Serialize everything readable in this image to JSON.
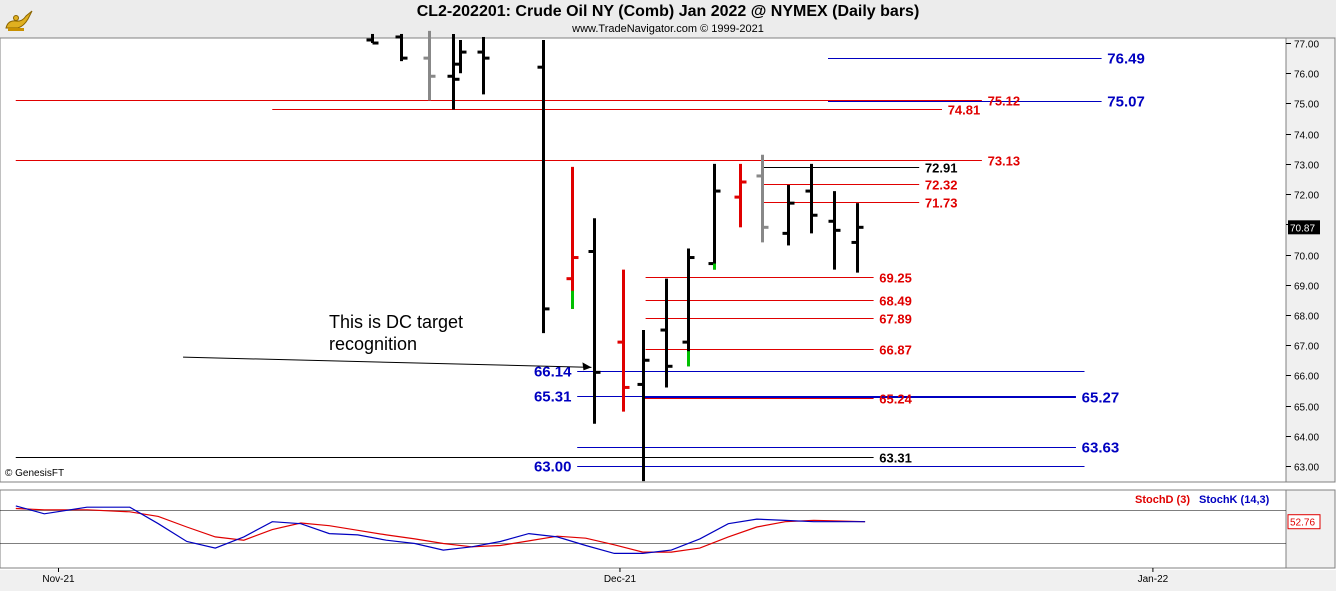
{
  "header": {
    "title": "CL2-202201:  Crude Oil NY (Comb) Jan 2022 @ NYMEX  (Daily bars)",
    "subtitle": "www.TradeNavigator.com © 1999-2021",
    "logo_icon": "genie-lamp-icon"
  },
  "watermark": "© GenesisFT",
  "annotation": {
    "lines": [
      "This is DC target",
      "recognition"
    ],
    "arrow_from": [
      4.3,
      67.0
    ],
    "arrow_to": [
      18.7,
      66.2
    ]
  },
  "price_badge": "70.87",
  "stoch_badge": "52.76",
  "stoch_legend": [
    {
      "label": "StochD (3)",
      "color": "#e00000"
    },
    {
      "label": "StochK (14,3)",
      "color": "#0000c0"
    }
  ],
  "colors": {
    "up": "#000000",
    "red": "#e00000",
    "blue": "#0000c0",
    "gray": "#888888",
    "green": "#00c000"
  },
  "chart_data": {
    "type": "ohlc",
    "x_labels": [
      {
        "x": 0,
        "label": "Nov-21"
      },
      {
        "x": 19.7,
        "label": "Dec-21"
      },
      {
        "x": 38.4,
        "label": "Jan-22"
      }
    ],
    "ylim": [
      62.55,
      77.1
    ],
    "y_ticks": [
      63.0,
      64.0,
      65.0,
      66.0,
      67.0,
      68.0,
      69.0,
      70.0,
      71.0,
      72.0,
      73.0,
      74.0,
      75.0,
      76.0,
      77.0
    ],
    "bars": [
      {
        "x": 11.0,
        "h": 77.3,
        "l": 77.0,
        "o": 77.1,
        "c": 77.0,
        "color": "#000000"
      },
      {
        "x": 12.0,
        "h": 77.3,
        "l": 76.4,
        "o": 77.2,
        "c": 76.5,
        "color": "#000000"
      },
      {
        "x": 13.0,
        "h": 77.4,
        "l": 75.1,
        "o": 76.5,
        "c": 75.9,
        "color": "#888888"
      },
      {
        "x": 13.85,
        "h": 77.3,
        "l": 74.8,
        "o": 75.9,
        "c": 75.8,
        "color": "#000000"
      },
      {
        "x": 14.1,
        "h": 77.1,
        "l": 76.0,
        "o": 76.3,
        "c": 76.7,
        "color": "#000000"
      },
      {
        "x": 14.9,
        "h": 77.2,
        "l": 75.3,
        "o": 76.7,
        "c": 76.5,
        "color": "#000000"
      },
      {
        "x": 17.0,
        "h": 77.1,
        "l": 67.4,
        "o": 76.2,
        "c": 68.2,
        "color": "#000000"
      },
      {
        "x": 18.0,
        "h": 72.9,
        "l": 68.2,
        "o": 69.2,
        "c": 69.9,
        "color": "#e00000"
      },
      {
        "x": 18.8,
        "h": 71.2,
        "l": 64.4,
        "o": 70.1,
        "c": 66.1,
        "color": "#000000"
      },
      {
        "x": 19.8,
        "h": 69.5,
        "l": 64.8,
        "o": 67.1,
        "c": 65.6,
        "color": "#e00000"
      },
      {
        "x": 20.5,
        "h": 67.5,
        "l": 62.5,
        "o": 65.7,
        "c": 66.5,
        "color": "#000000"
      },
      {
        "x": 21.3,
        "h": 69.2,
        "l": 65.6,
        "o": 67.5,
        "c": 66.3,
        "color": "#000000"
      },
      {
        "x": 22.1,
        "h": 70.2,
        "l": 66.3,
        "o": 67.1,
        "c": 69.9,
        "color": "#000000"
      },
      {
        "x": 23.0,
        "h": 73.0,
        "l": 69.5,
        "o": 69.7,
        "c": 72.1,
        "color": "#000000"
      },
      {
        "x": 23.9,
        "h": 73.0,
        "l": 70.9,
        "o": 71.9,
        "c": 72.4,
        "color": "#e00000"
      },
      {
        "x": 24.7,
        "h": 73.3,
        "l": 70.4,
        "o": 72.6,
        "c": 70.9,
        "color": "#888888"
      },
      {
        "x": 25.6,
        "h": 72.3,
        "l": 70.3,
        "o": 70.7,
        "c": 71.7,
        "color": "#000000"
      },
      {
        "x": 26.4,
        "h": 73.0,
        "l": 70.7,
        "o": 72.1,
        "c": 71.3,
        "color": "#000000"
      },
      {
        "x": 27.2,
        "h": 72.1,
        "l": 69.5,
        "o": 71.1,
        "c": 70.8,
        "color": "#000000"
      },
      {
        "x": 28.0,
        "h": 71.7,
        "l": 69.4,
        "o": 70.4,
        "c": 70.9,
        "color": "#000000"
      }
    ],
    "green_tails": [
      {
        "x": 18.0,
        "from": 68.8,
        "to": 68.2
      },
      {
        "x": 22.1,
        "from": 66.8,
        "to": 66.3
      },
      {
        "x": 23.0,
        "from": 69.7,
        "to": 69.5
      }
    ],
    "levels": [
      {
        "value": 76.49,
        "label": "76.49",
        "color": "#0000c0",
        "x1": 27.0,
        "x2": 36.6,
        "label_x": 36.8
      },
      {
        "value": 75.12,
        "label": "75.12",
        "color": "#e00000",
        "x1": -1.5,
        "x2": 32.4,
        "label_x": 32.6
      },
      {
        "value": 75.07,
        "label": "75.07",
        "color": "#0000c0",
        "x1": 27.0,
        "x2": 36.6,
        "label_x": 36.8
      },
      {
        "value": 74.81,
        "label": "74.81",
        "color": "#e00000",
        "x1": 7.5,
        "x2": 31.0,
        "label_x": 31.2
      },
      {
        "value": 73.13,
        "label": "73.13",
        "color": "#e00000",
        "x1": -1.5,
        "x2": 32.4,
        "label_x": 32.6
      },
      {
        "value": 72.91,
        "label": "72.91",
        "color": "#000000",
        "x1": 24.7,
        "x2": 30.2,
        "label_x": 30.4
      },
      {
        "value": 72.32,
        "label": "72.32",
        "color": "#e00000",
        "x1": 24.7,
        "x2": 30.2,
        "label_x": 30.4
      },
      {
        "value": 71.73,
        "label": "71.73",
        "color": "#e00000",
        "x1": 24.7,
        "x2": 30.2,
        "label_x": 30.4
      },
      {
        "value": 69.25,
        "label": "69.25",
        "color": "#e00000",
        "x1": 20.6,
        "x2": 28.6,
        "label_x": 28.8
      },
      {
        "value": 68.49,
        "label": "68.49",
        "color": "#e00000",
        "x1": 20.6,
        "x2": 28.6,
        "label_x": 28.8
      },
      {
        "value": 67.89,
        "label": "67.89",
        "color": "#e00000",
        "x1": 20.6,
        "x2": 28.6,
        "label_x": 28.8
      },
      {
        "value": 66.87,
        "label": "66.87",
        "color": "#e00000",
        "x1": 20.6,
        "x2": 28.6,
        "label_x": 28.8
      },
      {
        "value": 66.14,
        "label": "66.14",
        "color": "#0000c0",
        "x1": 18.2,
        "x2": 36.0,
        "label_x": 18.0,
        "label_align": "end"
      },
      {
        "value": 65.31,
        "label": "65.31",
        "color": "#0000c0",
        "x1": 18.2,
        "x2": 35.7,
        "label_x": 18.0,
        "label_align": "end"
      },
      {
        "value": 65.27,
        "label": "65.27",
        "color": "#0000c0",
        "x1": 20.5,
        "x2": 35.7,
        "label_x": 35.9
      },
      {
        "value": 65.24,
        "label": "65.24",
        "color": "#e00000",
        "x1": 20.5,
        "x2": 28.6,
        "label_x": 28.8
      },
      {
        "value": 63.63,
        "label": "63.63",
        "color": "#0000c0",
        "x1": 18.2,
        "x2": 35.7,
        "label_x": 35.9
      },
      {
        "value": 63.31,
        "label": "63.31",
        "color": "#000000",
        "x1": -1.5,
        "x2": 28.6,
        "label_x": 28.8
      },
      {
        "value": 63.0,
        "label": "63.00",
        "color": "#0000c0",
        "x1": 18.2,
        "x2": 36.0,
        "label_x": 18.0,
        "label_align": "end"
      }
    ],
    "stochastic": {
      "ylim": [
        0,
        100
      ],
      "k": [
        [
          -1.5,
          82
        ],
        [
          -0.5,
          70
        ],
        [
          1,
          80
        ],
        [
          2.5,
          80
        ],
        [
          3.5,
          55
        ],
        [
          4.5,
          28
        ],
        [
          5.5,
          18
        ],
        [
          6.5,
          35
        ],
        [
          7.5,
          58
        ],
        [
          8.5,
          55
        ],
        [
          9.5,
          40
        ],
        [
          10.5,
          38
        ],
        [
          11.5,
          30
        ],
        [
          12.5,
          25
        ],
        [
          13.5,
          15
        ],
        [
          14.5,
          20
        ],
        [
          15.5,
          28
        ],
        [
          16.5,
          40
        ],
        [
          17.5,
          35
        ],
        [
          18.5,
          22
        ],
        [
          19.5,
          10
        ],
        [
          20.5,
          10
        ],
        [
          21.5,
          15
        ],
        [
          22.5,
          32
        ],
        [
          23.5,
          55
        ],
        [
          24.5,
          62
        ],
        [
          25.5,
          60
        ],
        [
          26.5,
          58
        ],
        [
          27.5,
          58
        ],
        [
          28.3,
          58
        ]
      ],
      "d": [
        [
          -1.5,
          78
        ],
        [
          -0.5,
          76
        ],
        [
          1,
          76
        ],
        [
          2.5,
          73
        ],
        [
          3.5,
          66
        ],
        [
          4.5,
          50
        ],
        [
          5.5,
          35
        ],
        [
          6.5,
          30
        ],
        [
          7.5,
          46
        ],
        [
          8.5,
          56
        ],
        [
          9.5,
          52
        ],
        [
          10.5,
          45
        ],
        [
          11.5,
          38
        ],
        [
          12.5,
          32
        ],
        [
          13.5,
          25
        ],
        [
          14.5,
          20
        ],
        [
          15.5,
          22
        ],
        [
          16.5,
          29
        ],
        [
          17.5,
          36
        ],
        [
          18.5,
          33
        ],
        [
          19.5,
          23
        ],
        [
          20.5,
          12
        ],
        [
          21.5,
          12
        ],
        [
          22.5,
          18
        ],
        [
          23.5,
          35
        ],
        [
          24.5,
          50
        ],
        [
          25.5,
          58
        ],
        [
          26.5,
          60
        ],
        [
          27.5,
          59
        ],
        [
          28.3,
          58
        ]
      ]
    }
  }
}
